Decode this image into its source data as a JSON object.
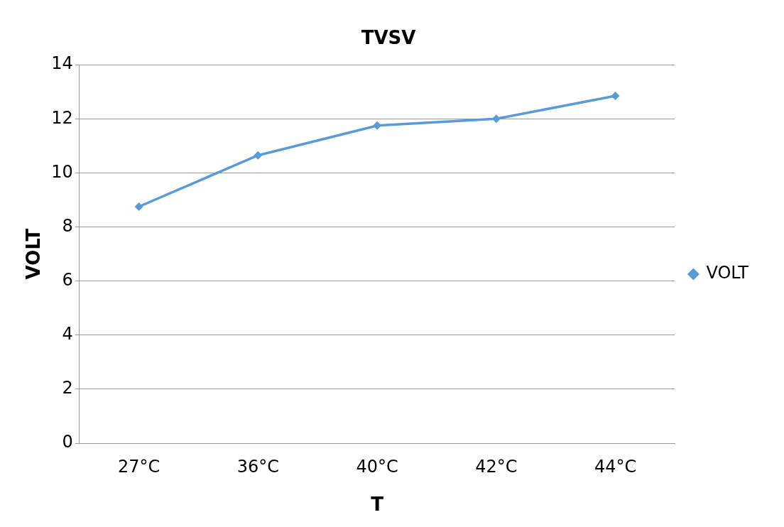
{
  "chart_data": {
    "type": "line",
    "title": "TVSV",
    "xlabel": "T",
    "ylabel": "VOLT",
    "categories": [
      "27°C",
      "36°C",
      "40°C",
      "42°C",
      "44°C"
    ],
    "series": [
      {
        "name": "VOLT",
        "color": "#5b9bd5",
        "values": [
          8.75,
          10.65,
          11.75,
          12,
          12.85
        ]
      }
    ],
    "ylim": [
      0,
      14
    ],
    "yticks": [
      0,
      2,
      4,
      6,
      8,
      10,
      12,
      14
    ],
    "grid": "y",
    "legend": "right",
    "marker": "diamond",
    "line_style": "solid"
  }
}
